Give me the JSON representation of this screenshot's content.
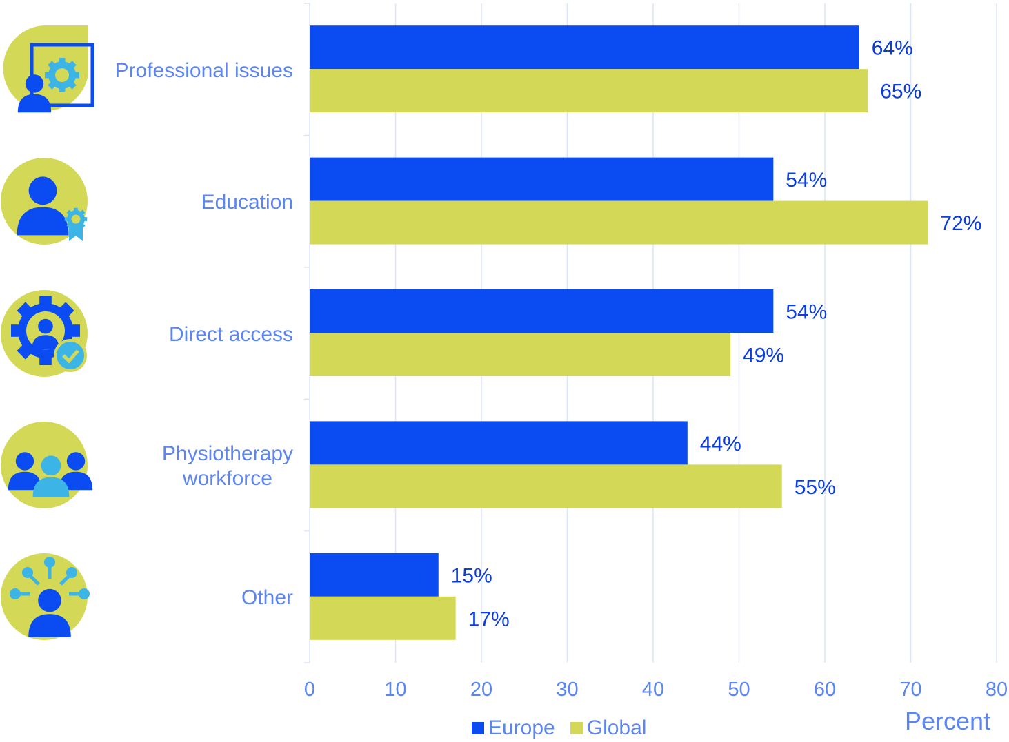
{
  "colors": {
    "europe": "#0a4cf2",
    "global": "#d3d956",
    "axis_text": "#5b86f2",
    "label_text": "#0a3de0",
    "grid": "#dbe5fb",
    "icon_dark": "#0a4cf2",
    "icon_light": "#3cb4e6",
    "icon_bg": "#d3d956"
  },
  "icons": [
    "presentation-gear-icon",
    "user-award-icon",
    "gear-user-check-icon",
    "group-users-icon",
    "user-network-icon"
  ],
  "legend": {
    "europe": "Europe",
    "global": "Global"
  },
  "axis_unit": "Percent",
  "chart_data": {
    "type": "bar",
    "orientation": "horizontal",
    "categories": [
      "Professional issues",
      "Education",
      "Direct access",
      "Physiotherapy\nworkforce",
      "Other"
    ],
    "series": [
      {
        "name": "Europe",
        "values": [
          64,
          54,
          54,
          44,
          15
        ],
        "labels": [
          "64%",
          "54%",
          "54%",
          "44%",
          "15%"
        ]
      },
      {
        "name": "Global",
        "values": [
          65,
          72,
          49,
          55,
          17
        ],
        "labels": [
          "65%",
          "72%",
          "49%",
          "55%",
          "17%"
        ]
      }
    ],
    "xlim": [
      0,
      80
    ],
    "xticks": [
      0,
      10,
      20,
      30,
      40,
      50,
      60,
      70,
      80
    ],
    "xlabel": "Percent",
    "grid": true,
    "legend_position": "bottom"
  }
}
